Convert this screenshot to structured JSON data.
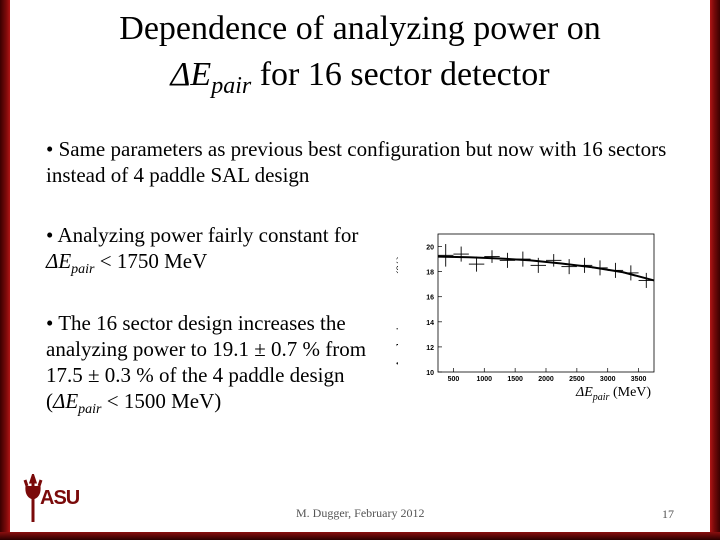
{
  "slide": {
    "title_line1": "Dependence of analyzing power on",
    "title_sym": "ΔE",
    "title_sub": "pair",
    "title_rest": " for 16 sector detector"
  },
  "bullets": {
    "b1": "• Same parameters as previous best configuration but now with 16 sectors instead of 4 paddle SAL design",
    "b2_pre": "• Analyzing power fairly constant for ",
    "b2_sym": "ΔE",
    "b2_sub": "pair",
    "b2_post": " < 1750 MeV",
    "b3_pre": "• The 16 sector design increases the analyzing power to 19.1 ± 0.7 % from 17.5 ± 0.3 % of the 4 paddle design (",
    "b3_sym": "ΔE",
    "b3_sub": "pair",
    "b3_post": " < 1500 MeV)"
  },
  "chart_data": {
    "type": "scatter",
    "title": "",
    "ylabel": "Analyzing power (%)",
    "xlabel_sym": "ΔE",
    "xlabel_sub": "pair",
    "xlabel_unit": " (MeV)",
    "xlim": [
      250,
      3750
    ],
    "ylim": [
      10,
      21
    ],
    "xticks": [
      500,
      1000,
      1500,
      2000,
      2500,
      3000,
      3500
    ],
    "yticks": [
      10,
      12,
      14,
      16,
      18,
      20
    ],
    "points": [
      {
        "x": 375,
        "y": 19.3,
        "xerr": 125,
        "yerr": 0.9
      },
      {
        "x": 625,
        "y": 19.4,
        "xerr": 125,
        "yerr": 0.6
      },
      {
        "x": 875,
        "y": 18.6,
        "xerr": 125,
        "yerr": 0.6
      },
      {
        "x": 1125,
        "y": 19.2,
        "xerr": 125,
        "yerr": 0.5
      },
      {
        "x": 1375,
        "y": 18.9,
        "xerr": 125,
        "yerr": 0.6
      },
      {
        "x": 1625,
        "y": 19.0,
        "xerr": 125,
        "yerr": 0.6
      },
      {
        "x": 1875,
        "y": 18.5,
        "xerr": 125,
        "yerr": 0.6
      },
      {
        "x": 2125,
        "y": 18.9,
        "xerr": 125,
        "yerr": 0.5
      },
      {
        "x": 2375,
        "y": 18.4,
        "xerr": 125,
        "yerr": 0.6
      },
      {
        "x": 2625,
        "y": 18.5,
        "xerr": 125,
        "yerr": 0.6
      },
      {
        "x": 2875,
        "y": 18.3,
        "xerr": 125,
        "yerr": 0.6
      },
      {
        "x": 3125,
        "y": 18.1,
        "xerr": 125,
        "yerr": 0.6
      },
      {
        "x": 3375,
        "y": 17.9,
        "xerr": 125,
        "yerr": 0.6
      },
      {
        "x": 3625,
        "y": 17.3,
        "xerr": 125,
        "yerr": 0.6
      }
    ],
    "fit": {
      "x": [
        250,
        750,
        1250,
        1750,
        2250,
        2750,
        3250,
        3750
      ],
      "y": [
        19.2,
        19.15,
        19.05,
        18.9,
        18.65,
        18.35,
        17.95,
        17.3
      ]
    },
    "colors": {
      "points": "#000000",
      "fit": "#000000"
    }
  },
  "footer": {
    "author": "M. Dugger, February 2012",
    "page": "17"
  },
  "logo": {
    "text": "ASU"
  }
}
